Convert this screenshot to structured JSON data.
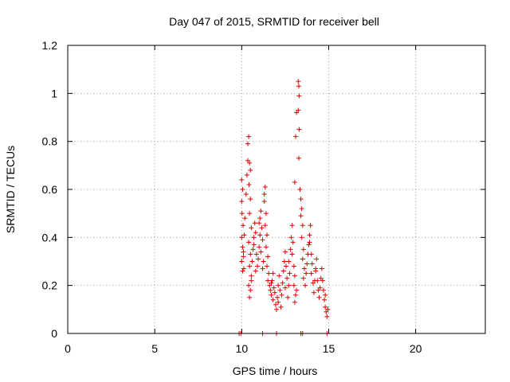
{
  "chart_data": {
    "type": "scatter",
    "title": "Day 047 of 2015, SRMTID for receiver bell",
    "xlabel": "GPS time / hours",
    "ylabel": "SRMTID / TECUs",
    "xlim": [
      0,
      24
    ],
    "ylim": [
      0,
      1.2
    ],
    "xticks": [
      0,
      5,
      10,
      15,
      20
    ],
    "xtick_labels": [
      "0",
      "5",
      "10",
      "15",
      "20"
    ],
    "yticks": [
      0,
      0.2,
      0.4,
      0.6,
      0.8,
      1.0,
      1.2
    ],
    "ytick_labels": [
      "0",
      "0.2",
      "0.4",
      "0.6",
      "0.8",
      "1",
      "1.2"
    ],
    "grid": true,
    "marker": "plus",
    "color": "#e00000",
    "series": [
      {
        "name": "SRMTID",
        "points": [
          [
            9.85,
            0.0
          ],
          [
            9.95,
            0.0
          ],
          [
            11.2,
            0.0
          ],
          [
            12.0,
            0.0
          ],
          [
            13.4,
            0.0
          ],
          [
            13.5,
            0.0
          ],
          [
            14.9,
            0.0
          ],
          [
            10.0,
            0.64
          ],
          [
            10.05,
            0.6
          ],
          [
            10.0,
            0.55
          ],
          [
            10.02,
            0.5
          ],
          [
            10.08,
            0.45
          ],
          [
            10.0,
            0.4
          ],
          [
            10.05,
            0.36
          ],
          [
            10.1,
            0.32
          ],
          [
            10.0,
            0.3
          ],
          [
            10.12,
            0.27
          ],
          [
            10.05,
            0.26
          ],
          [
            10.1,
            0.34
          ],
          [
            10.15,
            0.41
          ],
          [
            10.18,
            0.48
          ],
          [
            10.25,
            0.58
          ],
          [
            10.3,
            0.66
          ],
          [
            10.35,
            0.72
          ],
          [
            10.35,
            0.79
          ],
          [
            10.4,
            0.82
          ],
          [
            10.45,
            0.71
          ],
          [
            10.5,
            0.68
          ],
          [
            10.42,
            0.62
          ],
          [
            10.5,
            0.56
          ],
          [
            10.45,
            0.5
          ],
          [
            10.55,
            0.44
          ],
          [
            10.4,
            0.38
          ],
          [
            10.5,
            0.33
          ],
          [
            10.45,
            0.28
          ],
          [
            10.55,
            0.24
          ],
          [
            10.4,
            0.2
          ],
          [
            10.5,
            0.18
          ],
          [
            10.45,
            0.15
          ],
          [
            10.55,
            0.22
          ],
          [
            10.6,
            0.3
          ],
          [
            10.65,
            0.35
          ],
          [
            10.7,
            0.4
          ],
          [
            10.75,
            0.46
          ],
          [
            10.8,
            0.42
          ],
          [
            10.7,
            0.37
          ],
          [
            10.85,
            0.33
          ],
          [
            10.9,
            0.28
          ],
          [
            10.8,
            0.26
          ],
          [
            10.95,
            0.31
          ],
          [
            11.0,
            0.36
          ],
          [
            11.05,
            0.41
          ],
          [
            11.0,
            0.46
          ],
          [
            11.1,
            0.51
          ],
          [
            11.05,
            0.48
          ],
          [
            11.15,
            0.44
          ],
          [
            11.2,
            0.39
          ],
          [
            11.1,
            0.34
          ],
          [
            11.25,
            0.3
          ],
          [
            11.2,
            0.27
          ],
          [
            11.3,
            0.58
          ],
          [
            11.35,
            0.61
          ],
          [
            11.3,
            0.55
          ],
          [
            11.4,
            0.5
          ],
          [
            11.35,
            0.45
          ],
          [
            11.45,
            0.41
          ],
          [
            11.4,
            0.36
          ],
          [
            11.5,
            0.32
          ],
          [
            11.45,
            0.28
          ],
          [
            11.55,
            0.25
          ],
          [
            11.5,
            0.22
          ],
          [
            11.6,
            0.2
          ],
          [
            11.65,
            0.18
          ],
          [
            11.7,
            0.16
          ],
          [
            11.75,
            0.22
          ],
          [
            11.8,
            0.25
          ],
          [
            11.7,
            0.21
          ],
          [
            11.85,
            0.19
          ],
          [
            11.9,
            0.17
          ],
          [
            11.8,
            0.14
          ],
          [
            11.95,
            0.12
          ],
          [
            12.0,
            0.1
          ],
          [
            12.05,
            0.15
          ],
          [
            12.1,
            0.2
          ],
          [
            12.15,
            0.24
          ],
          [
            12.2,
            0.18
          ],
          [
            12.1,
            0.13
          ],
          [
            12.25,
            0.11
          ],
          [
            12.3,
            0.16
          ],
          [
            12.35,
            0.21
          ],
          [
            12.4,
            0.26
          ],
          [
            12.45,
            0.3
          ],
          [
            12.5,
            0.34
          ],
          [
            12.55,
            0.28
          ],
          [
            12.6,
            0.23
          ],
          [
            12.5,
            0.19
          ],
          [
            12.65,
            0.15
          ],
          [
            12.7,
            0.2
          ],
          [
            12.75,
            0.25
          ],
          [
            12.7,
            0.3
          ],
          [
            12.8,
            0.35
          ],
          [
            12.85,
            0.4
          ],
          [
            12.9,
            0.45
          ],
          [
            12.95,
            0.38
          ],
          [
            12.9,
            0.33
          ],
          [
            13.0,
            0.28
          ],
          [
            13.05,
            0.24
          ],
          [
            13.0,
            0.2
          ],
          [
            13.1,
            0.16
          ],
          [
            13.05,
            0.13
          ],
          [
            13.15,
            0.18
          ],
          [
            13.05,
            0.63
          ],
          [
            13.1,
            0.82
          ],
          [
            13.15,
            0.92
          ],
          [
            13.25,
            1.05
          ],
          [
            13.28,
            1.03
          ],
          [
            13.3,
            0.99
          ],
          [
            13.25,
            0.93
          ],
          [
            13.3,
            0.85
          ],
          [
            13.28,
            0.73
          ],
          [
            13.35,
            0.6
          ],
          [
            13.4,
            0.56
          ],
          [
            13.45,
            0.52
          ],
          [
            13.4,
            0.49
          ],
          [
            13.5,
            0.45
          ],
          [
            13.45,
            0.4
          ],
          [
            13.55,
            0.35
          ],
          [
            13.5,
            0.31
          ],
          [
            13.6,
            0.27
          ],
          [
            13.55,
            0.23
          ],
          [
            13.65,
            0.2
          ],
          [
            13.7,
            0.25
          ],
          [
            13.75,
            0.29
          ],
          [
            13.8,
            0.33
          ],
          [
            13.85,
            0.37
          ],
          [
            13.9,
            0.41
          ],
          [
            13.95,
            0.45
          ],
          [
            13.9,
            0.38
          ],
          [
            14.0,
            0.33
          ],
          [
            14.05,
            0.29
          ],
          [
            14.0,
            0.25
          ],
          [
            14.1,
            0.21
          ],
          [
            14.15,
            0.17
          ],
          [
            14.2,
            0.22
          ],
          [
            14.25,
            0.27
          ],
          [
            14.3,
            0.31
          ],
          [
            14.25,
            0.26
          ],
          [
            14.35,
            0.22
          ],
          [
            14.4,
            0.18
          ],
          [
            14.45,
            0.15
          ],
          [
            14.5,
            0.19
          ],
          [
            14.55,
            0.23
          ],
          [
            14.6,
            0.27
          ],
          [
            14.65,
            0.22
          ],
          [
            14.7,
            0.18
          ],
          [
            14.75,
            0.14
          ],
          [
            14.8,
            0.11
          ],
          [
            14.85,
            0.09
          ],
          [
            14.9,
            0.07
          ],
          [
            14.95,
            0.1
          ],
          [
            14.8,
            0.16
          ]
        ]
      }
    ]
  }
}
